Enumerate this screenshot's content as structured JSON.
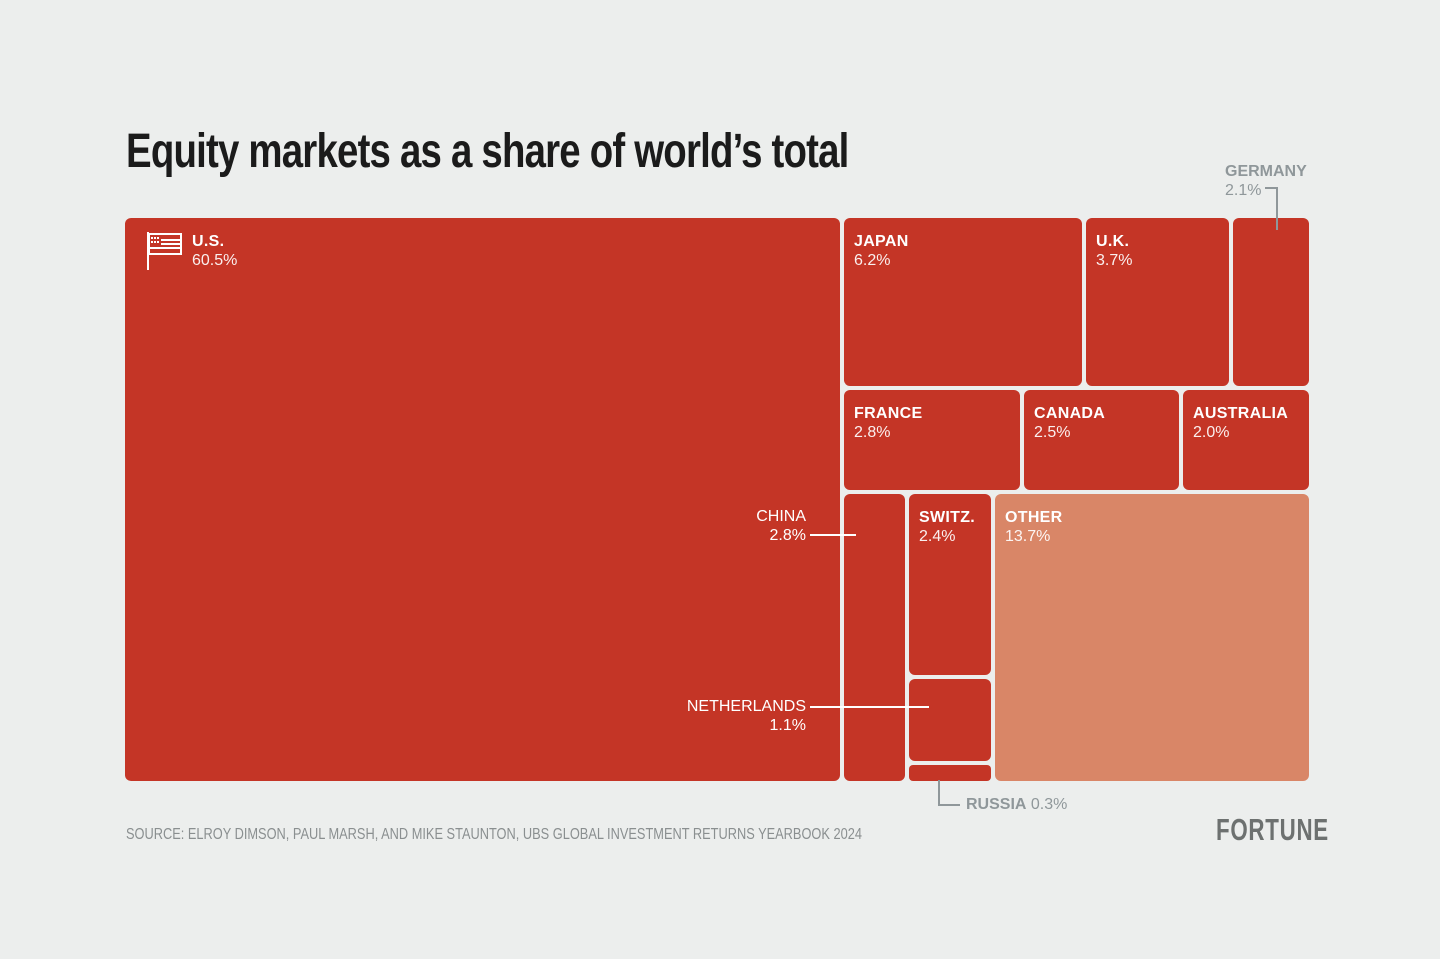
{
  "chart_data": {
    "type": "treemap",
    "title": "Equity markets as a share of world’s total",
    "unit": "%",
    "colors": {
      "country": "#c43526",
      "other": "#d98667",
      "background": "#eceeed"
    },
    "items": [
      {
        "name": "U.S.",
        "value": 60.5,
        "value_label": "60.5%",
        "icon": "us-flag-icon"
      },
      {
        "name": "JAPAN",
        "value": 6.2,
        "value_label": "6.2%"
      },
      {
        "name": "U.K.",
        "value": 3.7,
        "value_label": "3.7%"
      },
      {
        "name": "GERMANY",
        "value": 2.1,
        "value_label": "2.1%"
      },
      {
        "name": "FRANCE",
        "value": 2.8,
        "value_label": "2.8%"
      },
      {
        "name": "CANADA",
        "value": 2.5,
        "value_label": "2.5%"
      },
      {
        "name": "AUSTRALIA",
        "value": 2.0,
        "value_label": "2.0%"
      },
      {
        "name": "CHINA",
        "value": 2.8,
        "value_label": "2.8%"
      },
      {
        "name": "SWITZ.",
        "value": 2.4,
        "value_label": "2.4%"
      },
      {
        "name": "NETHERLANDS",
        "value": 1.1,
        "value_label": "1.1%"
      },
      {
        "name": "RUSSIA",
        "value": 0.3,
        "value_label": "0.3%"
      },
      {
        "name": "OTHER",
        "value": 13.7,
        "value_label": "13.7%"
      }
    ],
    "source": "SOURCE: ELROY DIMSON, PAUL MARSH, AND MIKE STAUNTON, UBS GLOBAL INVESTMENT RETURNS YEARBOOK 2024",
    "logo": "FORTUNE"
  }
}
